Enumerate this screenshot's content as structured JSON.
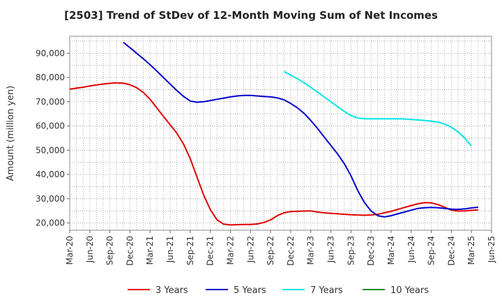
{
  "chart_data": {
    "type": "line",
    "title": "[2503]  Trend of StDev of 12-Month Moving Sum of Net Incomes",
    "xlabel": "",
    "ylabel": "Amount (million yen)",
    "ylim": [
      17000,
      97000
    ],
    "yticks": [
      20000,
      30000,
      40000,
      50000,
      60000,
      70000,
      80000,
      90000
    ],
    "ytick_labels": [
      "20,000",
      "30,000",
      "40,000",
      "50,000",
      "60,000",
      "70,000",
      "80,000",
      "90,000"
    ],
    "xtick_labels": [
      "Mar-20",
      "Jun-20",
      "Sep-20",
      "Dec-20",
      "Mar-21",
      "Jun-21",
      "Sep-21",
      "Dec-21",
      "Mar-22",
      "Jun-22",
      "Sep-22",
      "Dec-22",
      "Mar-23",
      "Jun-23",
      "Sep-23",
      "Dec-23",
      "Mar-24",
      "Jun-24",
      "Sep-24",
      "Dec-24",
      "Mar-25",
      "Jun-25"
    ],
    "grid": true,
    "legend_position": "bottom",
    "series": [
      {
        "name": "3 Years",
        "color": "#e00000",
        "start_month": "Mar-20",
        "values": [
          75200,
          75600,
          76000,
          76500,
          76900,
          77300,
          77600,
          77800,
          77700,
          77000,
          75800,
          73800,
          71000,
          67500,
          64000,
          60500,
          57000,
          52500,
          46500,
          39000,
          31500,
          25500,
          21300,
          19500,
          19200,
          19300,
          19400,
          19400,
          19600,
          20200,
          21300,
          23000,
          24200,
          24700,
          24800,
          24900,
          25000,
          24500,
          24200,
          24000,
          23800,
          23600,
          23400,
          23300,
          23200,
          23300,
          23600,
          24200,
          24800,
          25600,
          26400,
          27200,
          27900,
          28400,
          28300,
          27600,
          26500,
          25300,
          24900,
          25000,
          25200,
          25400
        ]
      },
      {
        "name": "5 Years",
        "color": "#0000cc",
        "start_month": "Nov-20",
        "values": [
          94500,
          92300,
          90000,
          87700,
          85300,
          82700,
          80000,
          77300,
          74600,
          72200,
          70300,
          69800,
          70000,
          70500,
          71000,
          71500,
          72000,
          72400,
          72600,
          72600,
          72400,
          72200,
          72000,
          71600,
          70800,
          69300,
          67500,
          65200,
          62300,
          59000,
          55500,
          52000,
          48500,
          44500,
          39500,
          33500,
          28500,
          25000,
          23000,
          22500,
          23000,
          23800,
          24500,
          25300,
          26000,
          26300,
          26400,
          26300,
          26000,
          25700,
          25600,
          25800,
          26200,
          26500
        ]
      },
      {
        "name": "7 Years",
        "color": "#00e5e5",
        "start_month": "Nov-22",
        "values": [
          82500,
          81000,
          79500,
          77800,
          76000,
          74000,
          72000,
          70000,
          68000,
          66000,
          64300,
          63300,
          63000,
          63000,
          63000,
          63000,
          63000,
          63000,
          62900,
          62700,
          62500,
          62300,
          62000,
          61600,
          60800,
          59500,
          57600,
          55000,
          51800
        ]
      },
      {
        "name": "10 Years",
        "color": "#228b22",
        "start_month": "Mar-20",
        "values": []
      }
    ]
  }
}
